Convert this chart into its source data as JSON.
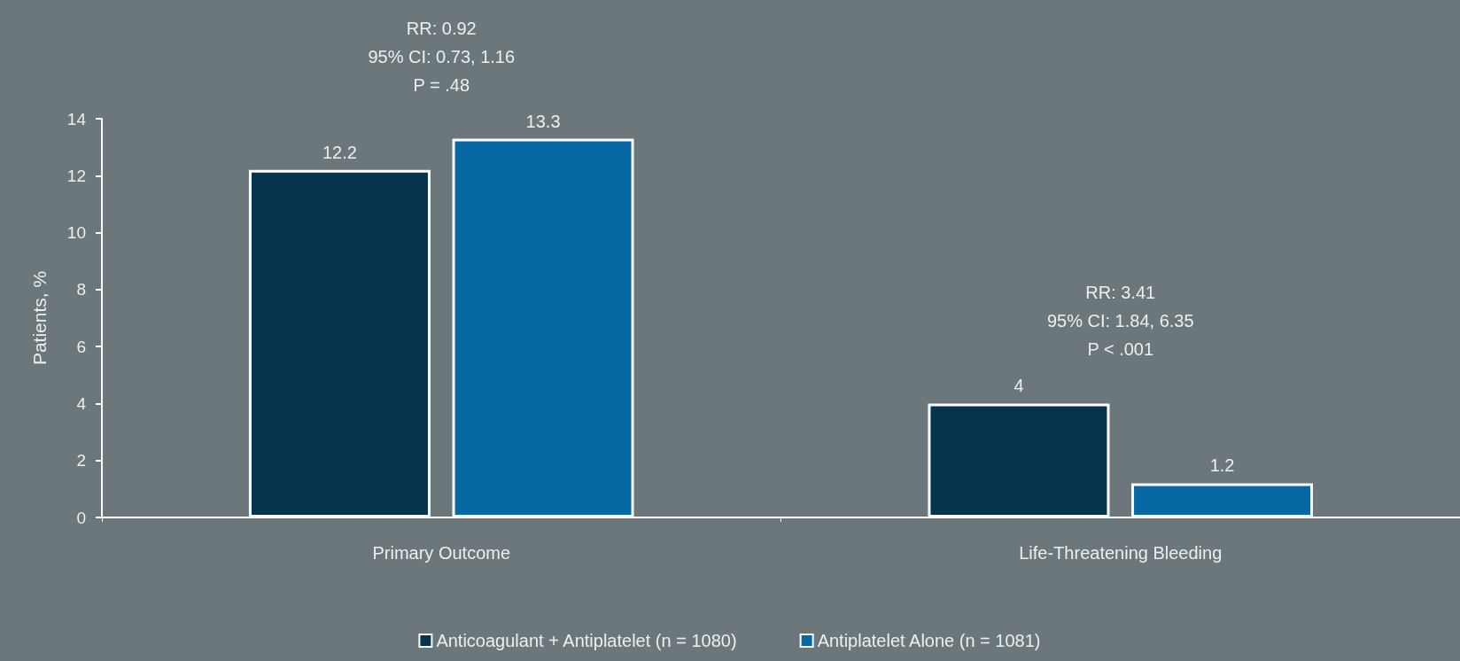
{
  "chart_data": {
    "type": "bar",
    "ylabel": "Patients, %",
    "categories": [
      "Primary Outcome",
      "Life-Threatening Bleeding"
    ],
    "series": [
      {
        "name": "Anticoagulant + Antiplatelet (n = 1080)",
        "color": "#06344f",
        "values": [
          12.2,
          4
        ]
      },
      {
        "name": "Antiplatelet Alone (n = 1081)",
        "color": "#0868a4",
        "values": [
          13.3,
          1.2
        ]
      }
    ],
    "ylim": [
      0,
      14
    ],
    "yticks": [
      0,
      2,
      4,
      6,
      8,
      10,
      12,
      14
    ],
    "data_labels": true,
    "legend": "bottom",
    "grid": false,
    "annotations": [
      "RR: 0.92\n95% CI: 0.73, 1.16\nP = .48",
      "RR: 3.41\n95% CI: 1.84, 6.35\nP < .001"
    ]
  }
}
